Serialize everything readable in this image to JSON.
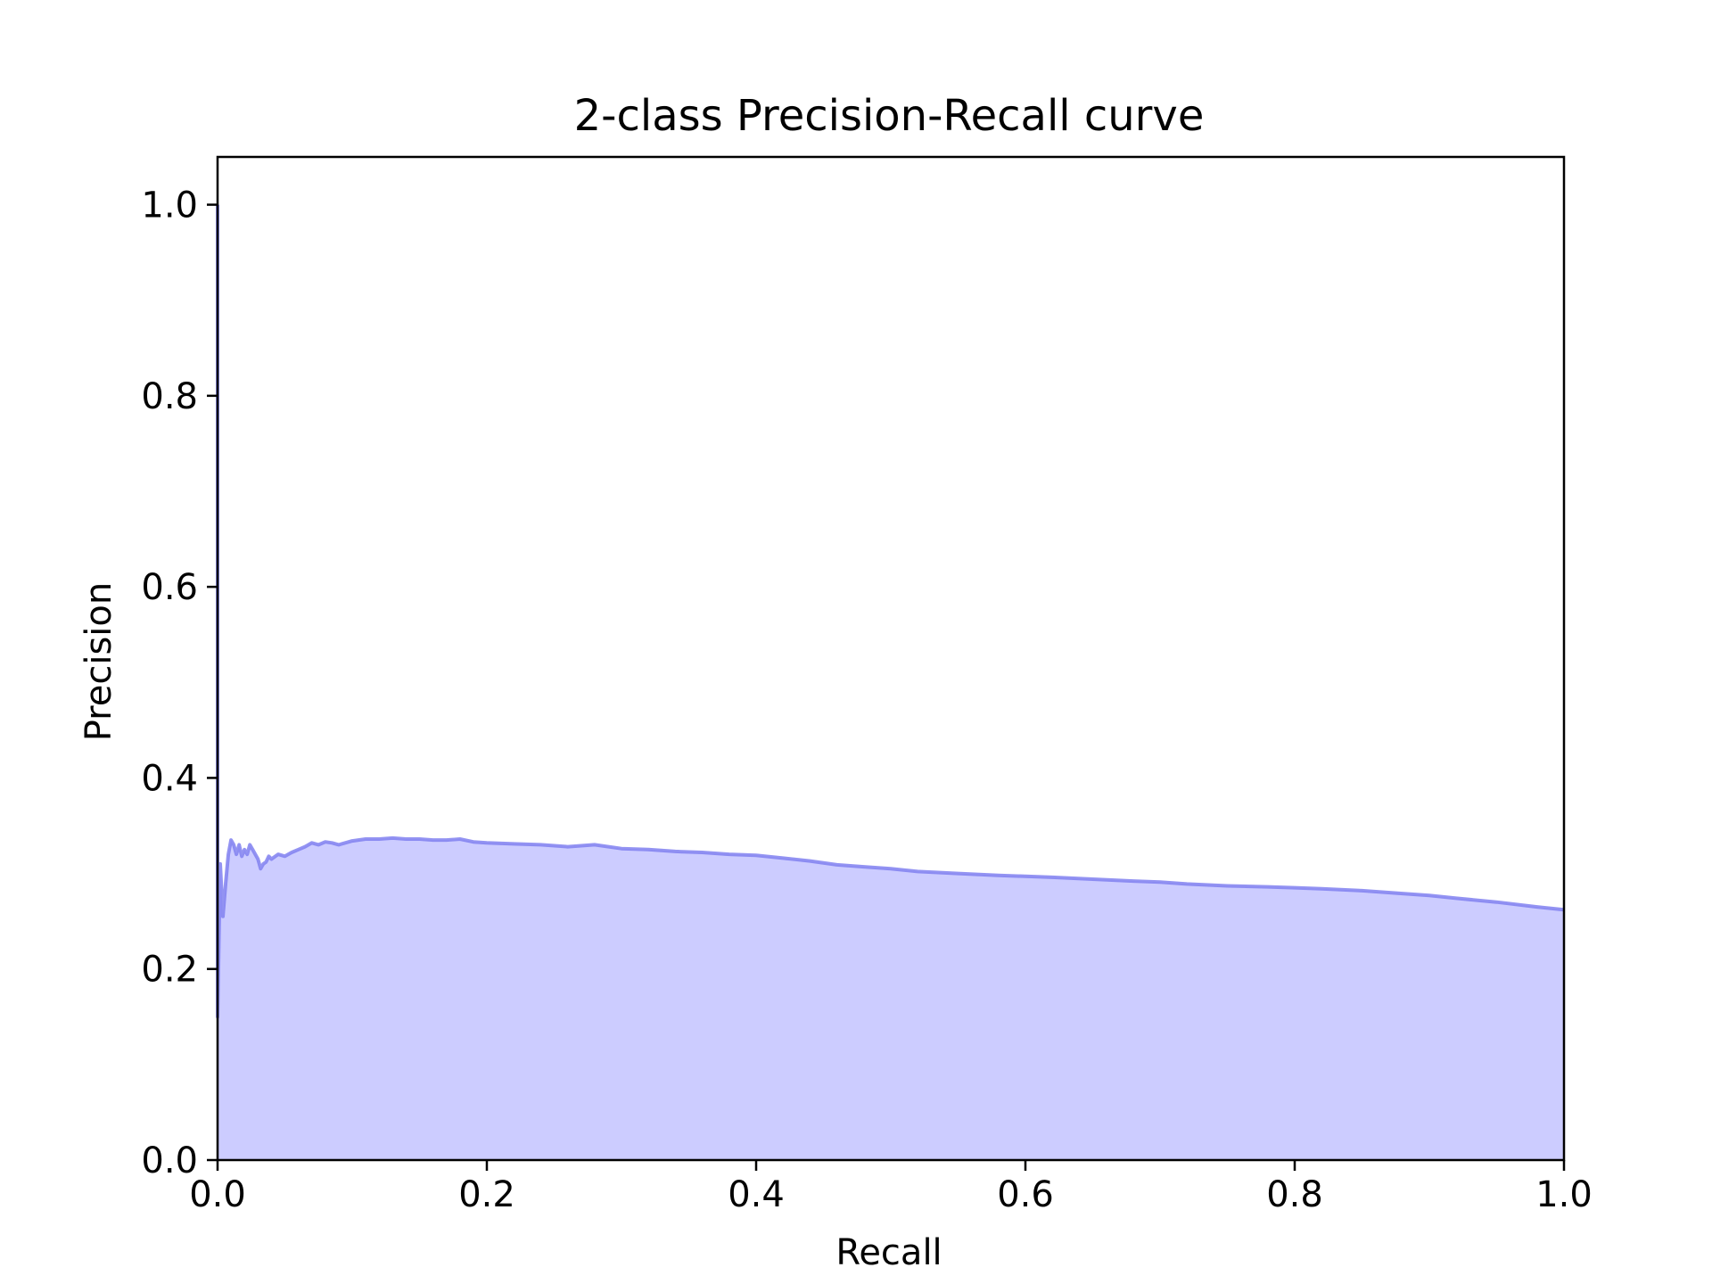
{
  "chart_data": {
    "type": "area",
    "title": "2-class Precision-Recall curve",
    "xlabel": "Recall",
    "ylabel": "Precision",
    "xlim": [
      0.0,
      1.0
    ],
    "ylim": [
      0.0,
      1.05
    ],
    "xticks": [
      0.0,
      0.2,
      0.4,
      0.6,
      0.8,
      1.0
    ],
    "xtick_labels": [
      "0.0",
      "0.2",
      "0.4",
      "0.6",
      "0.8",
      "1.0"
    ],
    "yticks": [
      0.0,
      0.2,
      0.4,
      0.6,
      0.8,
      1.0
    ],
    "ytick_labels": [
      "0.0",
      "0.2",
      "0.4",
      "0.6",
      "0.8",
      "1.0"
    ],
    "grid": false,
    "legend": "none",
    "colors": {
      "fill": "#ccccff",
      "line": "#8080f0",
      "axes": "#000000"
    },
    "series": [
      {
        "x": [
          0.0,
          0.0,
          0.002,
          0.004,
          0.006,
          0.008,
          0.01,
          0.012,
          0.014,
          0.016,
          0.018,
          0.02,
          0.022,
          0.024,
          0.026,
          0.028,
          0.03,
          0.032,
          0.034,
          0.036,
          0.038,
          0.04,
          0.045,
          0.05,
          0.055,
          0.06,
          0.065,
          0.07,
          0.075,
          0.08,
          0.085,
          0.09,
          0.1,
          0.11,
          0.12,
          0.13,
          0.14,
          0.15,
          0.16,
          0.17,
          0.18,
          0.19,
          0.2,
          0.22,
          0.24,
          0.26,
          0.28,
          0.3,
          0.32,
          0.34,
          0.36,
          0.38,
          0.4,
          0.42,
          0.44,
          0.46,
          0.48,
          0.5,
          0.52,
          0.55,
          0.58,
          0.6,
          0.62,
          0.65,
          0.68,
          0.7,
          0.72,
          0.75,
          0.78,
          0.8,
          0.82,
          0.85,
          0.88,
          0.9,
          0.92,
          0.95,
          0.98,
          1.0
        ],
        "y": [
          1.0,
          0.15,
          0.31,
          0.255,
          0.29,
          0.32,
          0.335,
          0.33,
          0.32,
          0.33,
          0.318,
          0.325,
          0.32,
          0.33,
          0.325,
          0.32,
          0.315,
          0.305,
          0.31,
          0.312,
          0.318,
          0.315,
          0.32,
          0.318,
          0.322,
          0.325,
          0.328,
          0.332,
          0.33,
          0.333,
          0.332,
          0.33,
          0.334,
          0.336,
          0.336,
          0.337,
          0.336,
          0.336,
          0.335,
          0.335,
          0.336,
          0.333,
          0.332,
          0.331,
          0.33,
          0.328,
          0.33,
          0.326,
          0.325,
          0.323,
          0.322,
          0.32,
          0.319,
          0.316,
          0.313,
          0.309,
          0.307,
          0.305,
          0.302,
          0.3,
          0.298,
          0.297,
          0.296,
          0.294,
          0.292,
          0.291,
          0.289,
          0.287,
          0.286,
          0.285,
          0.284,
          0.282,
          0.279,
          0.277,
          0.274,
          0.27,
          0.265,
          0.262
        ]
      }
    ]
  }
}
